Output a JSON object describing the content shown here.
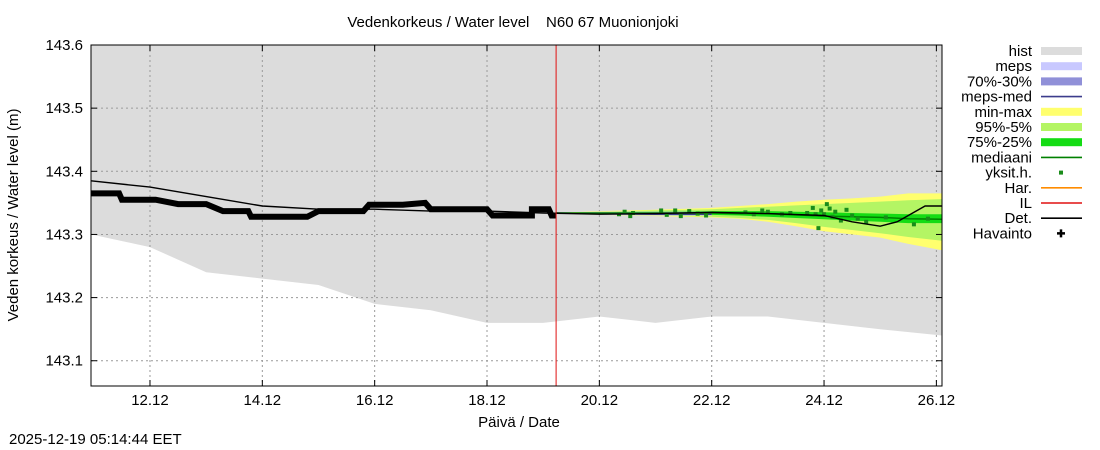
{
  "chart_data": {
    "type": "line",
    "title": "Vedenkorkeus / Water level    N60 67 Muonionjoki",
    "xlabel": "Päivä / Date",
    "ylabel": "Veden korkeus / Water level (m)",
    "x_range": [
      10.95,
      26.1
    ],
    "ylim": [
      143.06,
      143.6
    ],
    "x_ticks": [
      {
        "x": 12,
        "label": "12.12"
      },
      {
        "x": 14,
        "label": "14.12"
      },
      {
        "x": 16,
        "label": "16.12"
      },
      {
        "x": 18,
        "label": "18.12"
      },
      {
        "x": 20,
        "label": "20.12"
      },
      {
        "x": 22,
        "label": "22.12"
      },
      {
        "x": 24,
        "label": "24.12"
      },
      {
        "x": 26,
        "label": "26.12"
      }
    ],
    "y_ticks": [
      {
        "y": 143.1,
        "label": "143.1"
      },
      {
        "y": 143.2,
        "label": "143.2"
      },
      {
        "y": 143.3,
        "label": "143.3"
      },
      {
        "y": 143.4,
        "label": "143.4"
      },
      {
        "y": 143.5,
        "label": "143.5"
      },
      {
        "y": 143.6,
        "label": "143.6"
      }
    ],
    "grid": true,
    "colors": {
      "hist": "#dcdcdc",
      "meps": "#c8c8ff",
      "meps_70_30": "#9090d8",
      "meps_med": "#3c3c8c",
      "min_max": "#ffff6e",
      "p95_5": "#b4f564",
      "p75_25": "#14dc14",
      "median": "#008000",
      "yksit": "#1a8c1a",
      "har": "#ff8c00",
      "il": "#e01010",
      "det": "#000000",
      "havainto": "#000000"
    },
    "legend": [
      {
        "key": "hist",
        "label": "hist",
        "style": "band"
      },
      {
        "key": "meps",
        "label": "meps",
        "style": "band"
      },
      {
        "key": "meps_70_30",
        "label": "70%-30%",
        "style": "band"
      },
      {
        "key": "meps_med",
        "label": "meps-med",
        "style": "line"
      },
      {
        "key": "min_max",
        "label": "min-max",
        "style": "band"
      },
      {
        "key": "p95_5",
        "label": "95%-5%",
        "style": "band"
      },
      {
        "key": "p75_25",
        "label": "75%-25%",
        "style": "band"
      },
      {
        "key": "median",
        "label": "mediaani",
        "style": "line"
      },
      {
        "key": "yksit",
        "label": "yksit.h.",
        "style": "dot"
      },
      {
        "key": "har",
        "label": "Har.",
        "style": "line"
      },
      {
        "key": "il",
        "label": "IL",
        "style": "line"
      },
      {
        "key": "det",
        "label": "Det.",
        "style": "line"
      },
      {
        "key": "havainto",
        "label": "Havainto",
        "style": "cross"
      }
    ],
    "hist_lower": {
      "x": [
        10.95,
        12.0,
        13.0,
        14.0,
        15.0,
        16.0,
        17.0,
        18.0,
        19.0,
        20.0,
        21.0,
        22.0,
        23.0,
        24.0,
        25.0,
        26.1
      ],
      "y": [
        143.3,
        143.28,
        143.24,
        143.23,
        143.22,
        143.19,
        143.18,
        143.16,
        143.16,
        143.17,
        143.16,
        143.17,
        143.17,
        143.16,
        143.15,
        143.14
      ]
    },
    "hist_upper": 143.6,
    "now_x": 19.23,
    "det": {
      "x": [
        10.95,
        12.0,
        13.0,
        14.0,
        15.0,
        16.0,
        17.0,
        18.0,
        19.0,
        20.0,
        21.0,
        22.0,
        23.0,
        24.0,
        24.5,
        25.0,
        25.3,
        25.5,
        25.8,
        26.1
      ],
      "y": [
        143.385,
        143.375,
        143.36,
        143.345,
        143.34,
        143.34,
        143.337,
        143.337,
        143.334,
        143.332,
        143.333,
        143.335,
        143.333,
        143.33,
        143.32,
        143.313,
        143.32,
        143.33,
        143.345,
        143.345
      ]
    },
    "havainto": {
      "x": [
        10.95,
        11.45,
        11.5,
        12.1,
        12.5,
        13.0,
        13.3,
        13.75,
        13.8,
        14.8,
        15.0,
        15.8,
        15.9,
        16.5,
        16.9,
        17.0,
        18.0,
        18.1,
        18.8,
        18.8,
        19.1,
        19.15,
        19.23
      ],
      "y": [
        143.365,
        143.365,
        143.355,
        143.355,
        143.348,
        143.348,
        143.337,
        143.337,
        143.328,
        143.328,
        143.337,
        143.337,
        143.347,
        143.347,
        143.35,
        143.34,
        143.34,
        143.33,
        143.33,
        143.34,
        143.34,
        143.33,
        143.33
      ]
    },
    "forecast": {
      "x": [
        19.23,
        20.0,
        21.0,
        22.0,
        22.5,
        23.0,
        23.5,
        24.0,
        24.5,
        25.0,
        25.5,
        26.1
      ],
      "min": [
        143.334,
        143.331,
        143.329,
        143.327,
        143.325,
        143.32,
        143.313,
        143.305,
        143.3,
        143.295,
        143.285,
        143.275
      ],
      "max": [
        143.334,
        143.337,
        143.339,
        143.342,
        143.345,
        143.348,
        143.352,
        143.355,
        143.357,
        143.36,
        143.365,
        143.365
      ],
      "p5": [
        143.334,
        143.332,
        143.33,
        143.328,
        143.326,
        143.323,
        143.318,
        143.312,
        143.307,
        143.302,
        143.296,
        143.29
      ],
      "p95": [
        143.334,
        143.336,
        143.338,
        143.34,
        143.342,
        143.344,
        143.346,
        143.348,
        143.35,
        143.352,
        143.354,
        143.356
      ],
      "p25": [
        143.334,
        143.333,
        143.332,
        143.331,
        143.33,
        143.328,
        143.326,
        143.324,
        143.322,
        143.32,
        143.318,
        143.318
      ],
      "p75": [
        143.334,
        143.335,
        143.336,
        143.337,
        143.337,
        143.337,
        143.336,
        143.335,
        143.334,
        143.333,
        143.332,
        143.332
      ],
      "median": [
        143.334,
        143.334,
        143.334,
        143.334,
        143.333,
        143.333,
        143.331,
        143.329,
        143.328,
        143.327,
        143.325,
        143.324
      ],
      "meps_low": [
        143.334,
        143.331,
        143.33,
        143.33
      ],
      "meps_high": [
        143.334,
        143.336,
        143.336,
        143.336
      ],
      "meps_med": [
        143.334,
        143.333,
        143.332,
        143.332
      ]
    },
    "yksit": {
      "x": [
        20.35,
        20.45,
        20.55,
        20.6,
        21.1,
        21.2,
        21.35,
        21.45,
        21.6,
        21.75,
        21.9,
        22.6,
        22.75,
        22.9,
        23.0,
        23.25,
        23.4,
        23.7,
        23.8,
        23.85,
        23.9,
        23.95,
        24.0,
        24.05,
        24.1,
        24.15,
        24.2,
        24.3,
        24.4,
        24.5,
        24.6,
        24.75,
        25.1,
        25.6,
        25.85
      ],
      "y": [
        143.332,
        143.336,
        143.329,
        143.334,
        143.338,
        143.331,
        143.338,
        143.329,
        143.337,
        143.333,
        143.33,
        143.335,
        143.332,
        143.338,
        143.336,
        143.332,
        143.334,
        143.334,
        143.342,
        143.332,
        143.31,
        143.338,
        143.332,
        143.348,
        143.341,
        143.328,
        143.336,
        143.322,
        143.339,
        143.33,
        143.325,
        143.32,
        143.327,
        143.316,
        143.325
      ]
    }
  },
  "footer": {
    "timestamp": "2025-12-19 05:14:44 EET"
  }
}
